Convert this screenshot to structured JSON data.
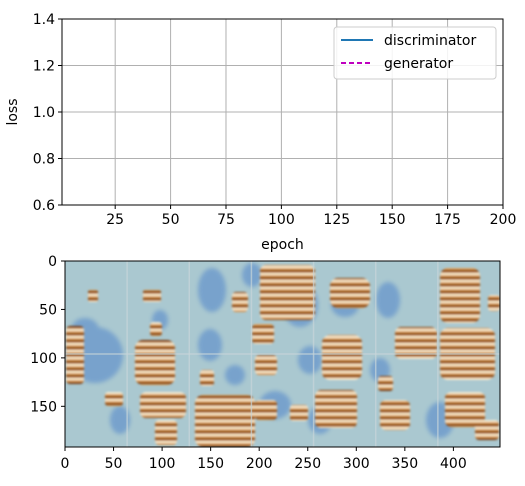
{
  "chart_data": [
    {
      "type": "line",
      "xlabel": "epoch",
      "ylabel": "loss",
      "xlim": [
        1,
        200
      ],
      "ylim": [
        0.6,
        1.4
      ],
      "xticks": [
        25,
        50,
        75,
        100,
        125,
        150,
        175,
        200
      ],
      "yticks": [
        0.6,
        0.8,
        1.0,
        1.2,
        1.4
      ],
      "grid": true,
      "legend_position": "top-right",
      "series": [
        {
          "name": "discriminator",
          "color": "#1f77b4",
          "linestyle": "solid",
          "x": [],
          "y": []
        },
        {
          "name": "generator",
          "color": "#bf00bf",
          "linestyle": "dashed",
          "x": [],
          "y": []
        }
      ]
    },
    {
      "type": "heatmap",
      "title": "",
      "xlim": [
        0,
        448
      ],
      "ylim": [
        192,
        0
      ],
      "xticks": [
        0,
        50,
        100,
        150,
        200,
        250,
        300,
        350,
        400
      ],
      "yticks": [
        0,
        50,
        100,
        150
      ],
      "grid_rows": 2,
      "grid_cols": 7,
      "background_color": "#aac8d0",
      "colors": {
        "blue": "#6f9ccc",
        "brown": "#a0581f",
        "orange": "#d8944a",
        "highlight": "#f5ead0"
      }
    }
  ]
}
